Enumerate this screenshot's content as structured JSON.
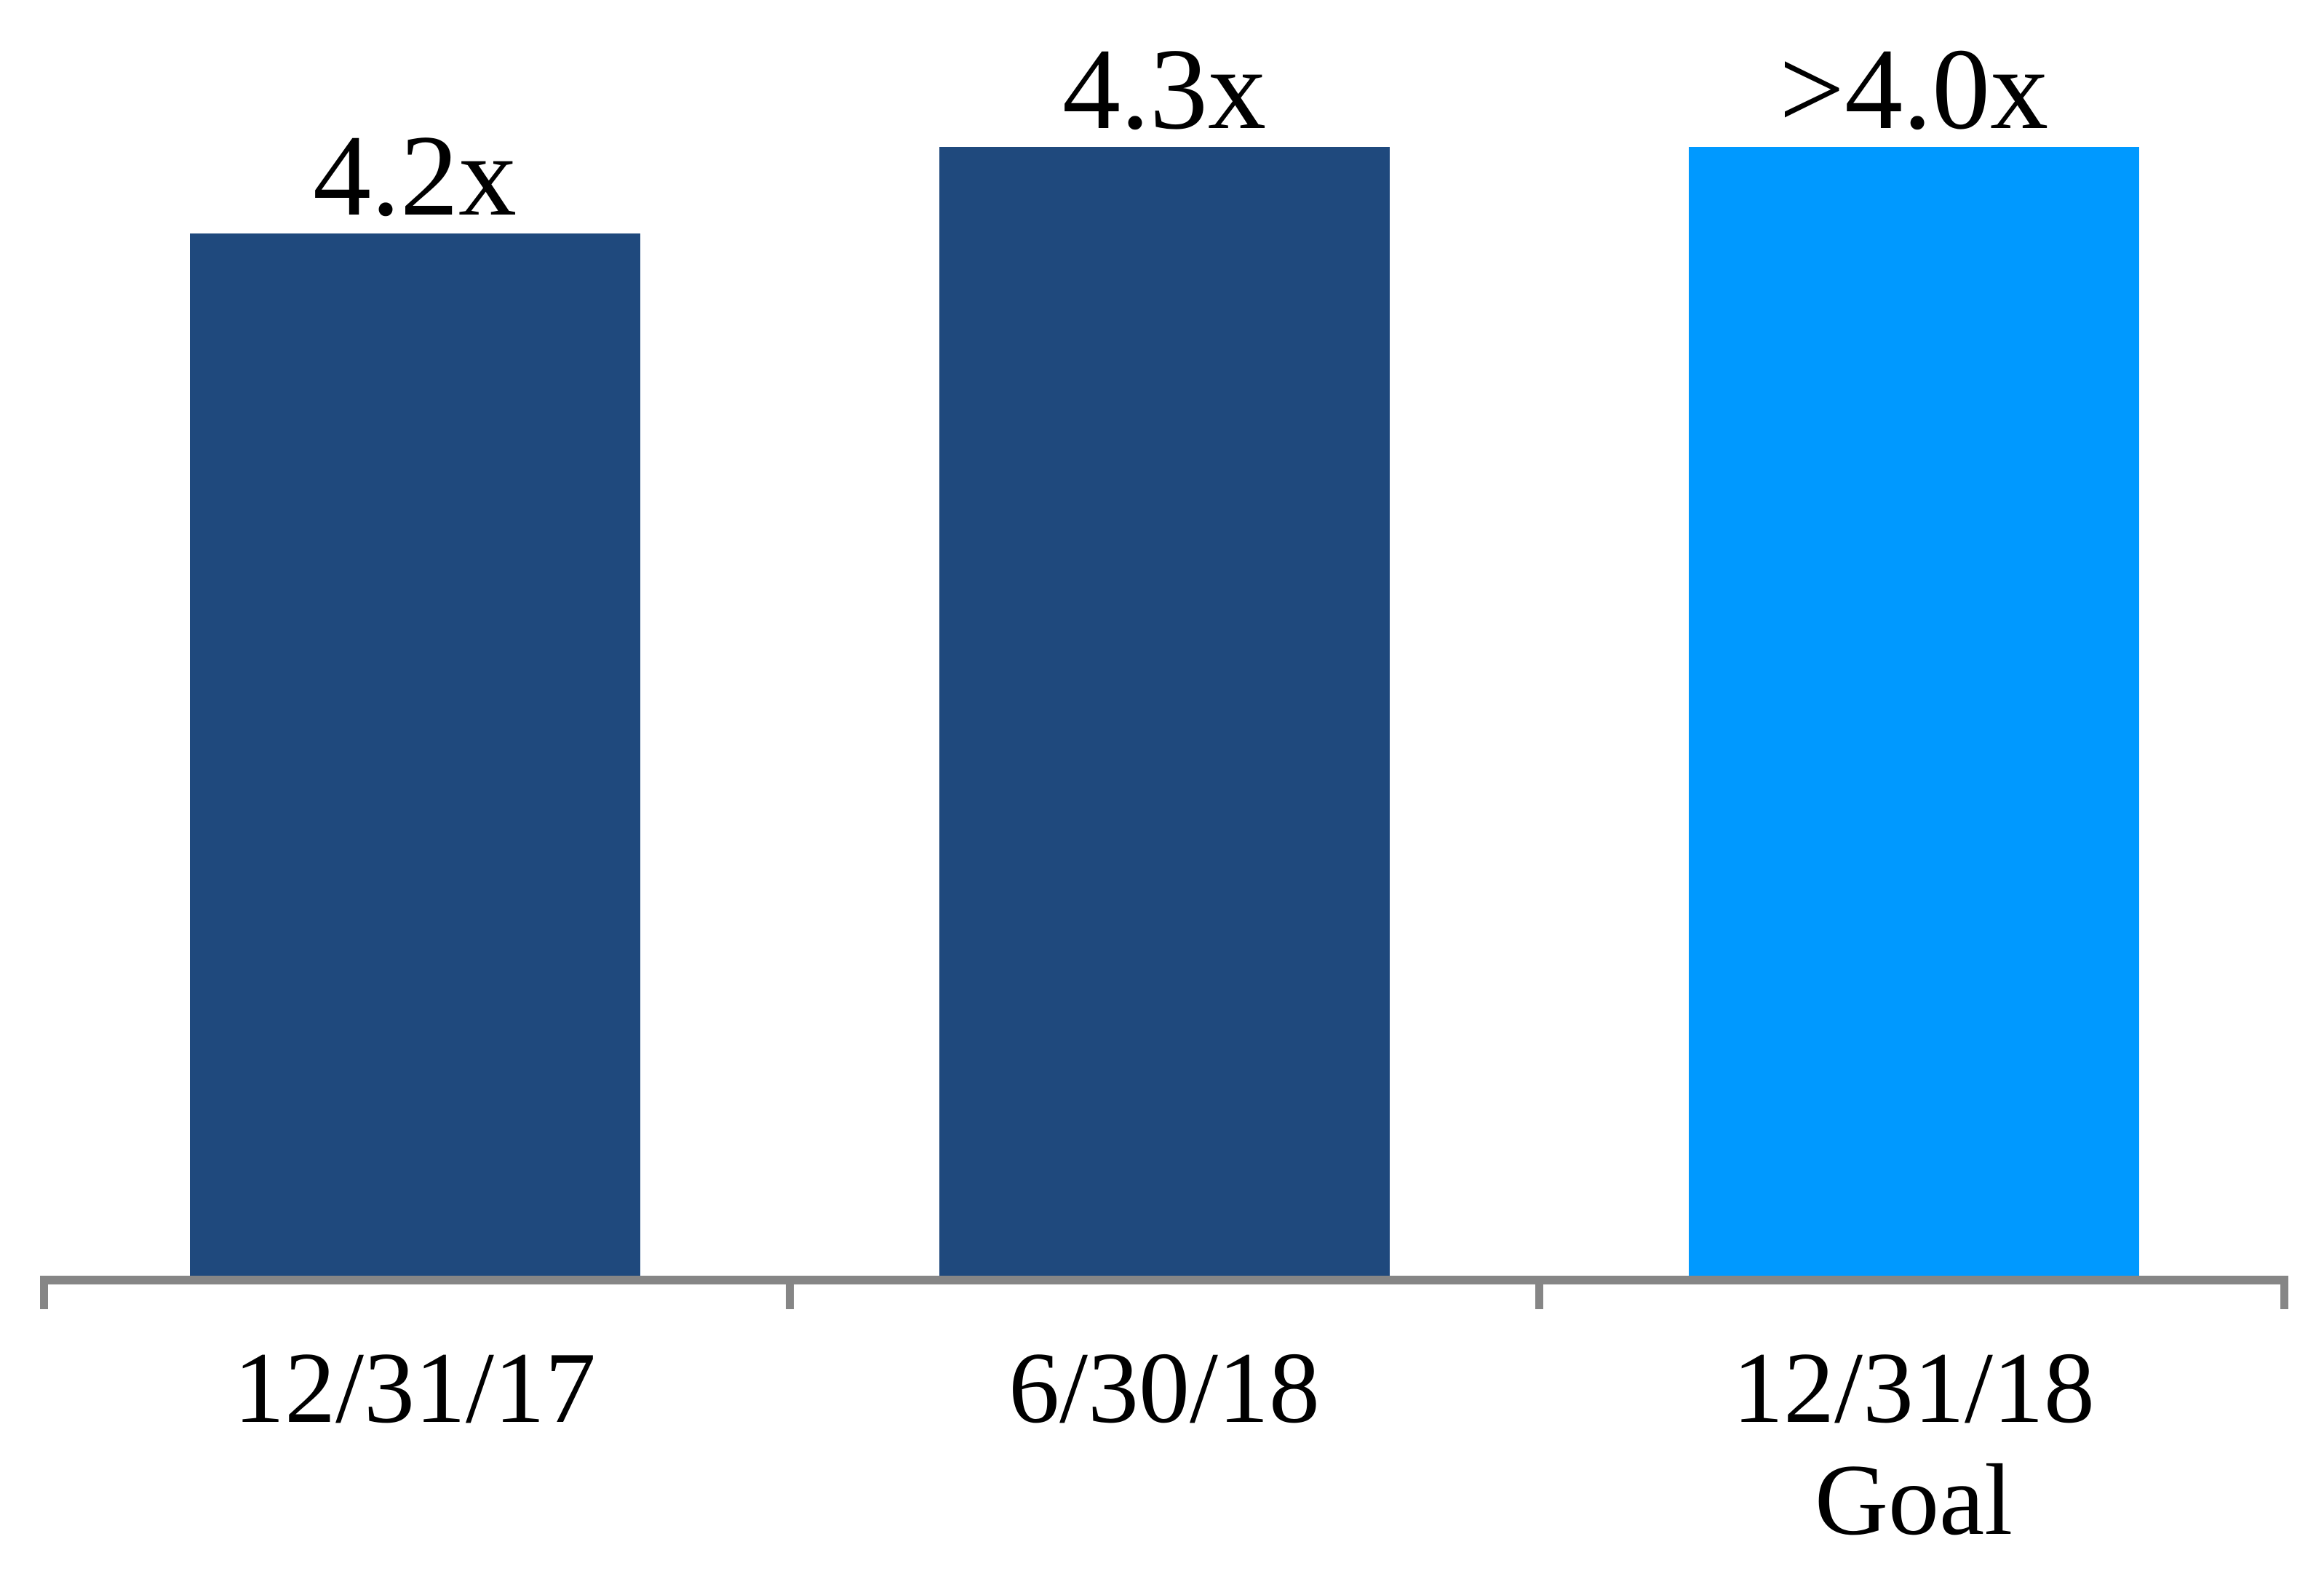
{
  "chart_data": {
    "type": "bar",
    "title": "",
    "xlabel": "",
    "ylabel": "",
    "categories": [
      [
        "12/31/17"
      ],
      [
        "6/30/18"
      ],
      [
        "12/31/18",
        "Goal"
      ]
    ],
    "value_labels": [
      "4.2x",
      "4.3x",
      ">4.0x"
    ],
    "values": [
      4.2,
      4.3,
      4.3
    ],
    "ylim": [
      3.0,
      4.45
    ],
    "grid": false,
    "legend": false,
    "y_axis_visible": false,
    "bar_colors": [
      "#1F497D",
      "#1F497D",
      "#0099FF"
    ],
    "axis_color": "#868686",
    "label_color": "#000000"
  }
}
